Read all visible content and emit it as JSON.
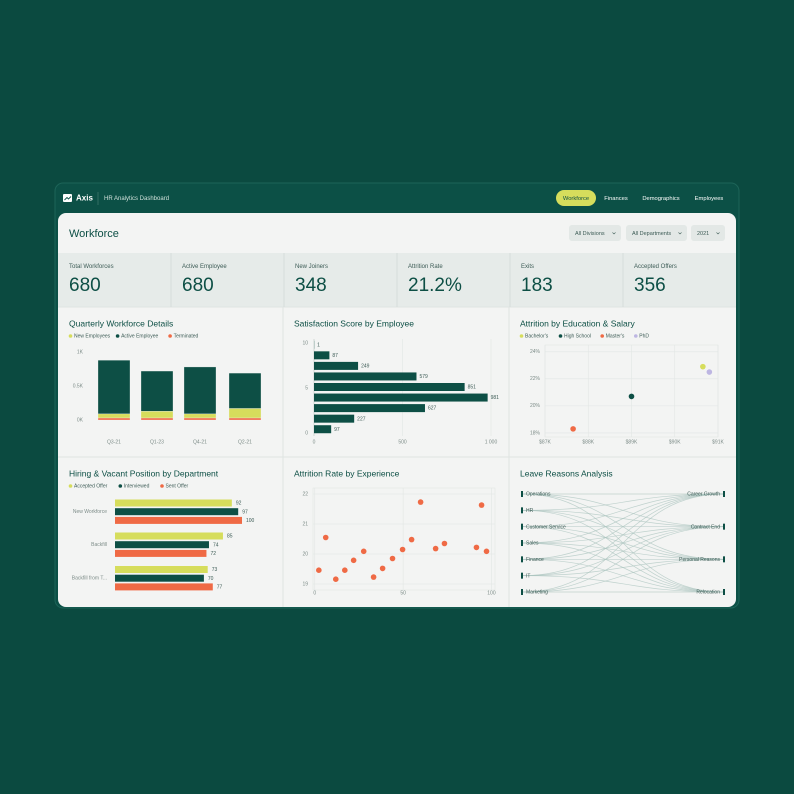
{
  "nav": {
    "logo": "Axis",
    "subtitle": "HR Analytics Dashboard",
    "tabs": [
      "Workforce",
      "Finances",
      "Demographics",
      "Employees"
    ],
    "active_tab": 0
  },
  "header": {
    "title": "Workforce",
    "filters": [
      "All Divisions",
      "All Departments",
      "2021"
    ]
  },
  "kpis": [
    {
      "label": "Total Workforces",
      "value": "680"
    },
    {
      "label": "Active Employee",
      "value": "680"
    },
    {
      "label": "New Joiners",
      "value": "348"
    },
    {
      "label": "Attrition Rate",
      "value": "21.2%"
    },
    {
      "label": "Exits",
      "value": "183"
    },
    {
      "label": "Accepted Offers",
      "value": "356"
    }
  ],
  "chart_data": [
    {
      "type": "stacked-bar",
      "title": "Quarterly Workforce Details",
      "categories": [
        "Q3-21",
        "Q1-23",
        "Q4-21",
        "Q2-21"
      ],
      "series": [
        {
          "name": "New Employees",
          "color": "#d6dd5c",
          "values": [
            60,
            100,
            60,
            140
          ]
        },
        {
          "name": "Active Employee",
          "color": "#0d4f45",
          "values": [
            790,
            590,
            690,
            520
          ]
        },
        {
          "name": "Terminated",
          "color": "#ef6a45",
          "values": [
            30,
            30,
            30,
            30
          ]
        }
      ],
      "stack_order": [
        2,
        0,
        1
      ],
      "ylim": [
        0,
        1000
      ],
      "yticks": [
        {
          "value": 0,
          "label": "0K"
        },
        {
          "value": 500,
          "label": "0.5K"
        },
        {
          "value": 1000,
          "label": "1K"
        }
      ]
    },
    {
      "type": "hbar",
      "title": "Satisfaction Score by Employee",
      "categories": [
        null,
        null,
        null,
        null,
        null,
        null,
        null,
        null,
        null
      ],
      "values": [
        1,
        87,
        249,
        579,
        851,
        981,
        627,
        227,
        97
      ],
      "color": "#0d4f45",
      "xlim": [
        0,
        1000
      ],
      "xticks": [
        0,
        500,
        {
          "value": 1000,
          "label": "1 000"
        }
      ],
      "ylim": [
        0,
        10
      ],
      "yticks": [
        0,
        5,
        10
      ],
      "grid": true
    },
    {
      "type": "scatter",
      "title": "Attrition by Education & Salary",
      "series": [
        {
          "name": "Bachelor's",
          "color": "#d6dd5c",
          "x": [
            90650
          ],
          "values": [
            22.9
          ]
        },
        {
          "name": "High School",
          "color": "#0d4f45",
          "x": [
            89000
          ],
          "values": [
            20.7
          ]
        },
        {
          "name": "Master's",
          "color": "#ef6a45",
          "x": [
            87650
          ],
          "values": [
            18.3
          ]
        },
        {
          "name": "PhD",
          "color": "#bdb6e2",
          "x": [
            90800
          ],
          "values": [
            22.5
          ]
        }
      ],
      "xlim": [
        87000,
        91000
      ],
      "xticks": [
        {
          "value": 87000,
          "label": "$87K"
        },
        {
          "value": 88000,
          "label": "$88K"
        },
        {
          "value": 89000,
          "label": "$89K"
        },
        {
          "value": 90000,
          "label": "$90K"
        },
        {
          "value": 91000,
          "label": "$91K"
        }
      ],
      "ylim": [
        17.7,
        24.5
      ],
      "yticks": [
        {
          "value": 18,
          "label": "18%"
        },
        {
          "value": 20,
          "label": "20%"
        },
        {
          "value": 22,
          "label": "22%"
        },
        {
          "value": 24,
          "label": "24%"
        }
      ],
      "grid": true
    },
    {
      "type": "grouped-hbar",
      "title": "Hiring & Vacant Position by Department",
      "categories": [
        "New Workforce",
        "Backfill",
        "Backfill from T..."
      ],
      "series": [
        {
          "name": "Accepted Offer",
          "color": "#d6dd5c",
          "values": [
            92,
            85,
            73
          ]
        },
        {
          "name": "Interviewed",
          "color": "#0d4f45",
          "values": [
            97,
            74,
            70
          ]
        },
        {
          "name": "Sent Offer",
          "color": "#ef6a45",
          "values": [
            100,
            72,
            77
          ]
        }
      ]
    },
    {
      "type": "scatter",
      "title": "Attrition Rate by Experience",
      "series": [
        {
          "name": null,
          "color": "#ef6a45",
          "x": [
            2.3,
            6.2,
            11.9,
            17,
            22,
            27.7,
            33.3,
            38.4,
            44,
            49.7,
            54.8,
            59.9,
            68.4,
            73.4,
            91.5,
            94.4,
            97.2
          ],
          "values": [
            19.46,
            20.55,
            19.16,
            19.46,
            19.79,
            20.09,
            19.23,
            19.52,
            19.85,
            20.15,
            20.48,
            21.73,
            20.18,
            20.35,
            20.22,
            21.63,
            20.09
          ]
        }
      ],
      "xlim": [
        -1,
        102
      ],
      "xticks": [
        0,
        50,
        100
      ],
      "ylim": [
        18.8,
        22.2
      ],
      "yticks": [
        19,
        20,
        21,
        22
      ],
      "grid": true
    },
    {
      "type": "sankey",
      "title": "Leave Reasons Analysis",
      "sources": [
        "Operations",
        "HR",
        "Customer Service",
        "Sales",
        "Finance",
        "IT",
        "Marketing"
      ],
      "targets": [
        "Career Growth",
        "Contract End",
        "Personal Reasons",
        "Relocation"
      ]
    }
  ]
}
